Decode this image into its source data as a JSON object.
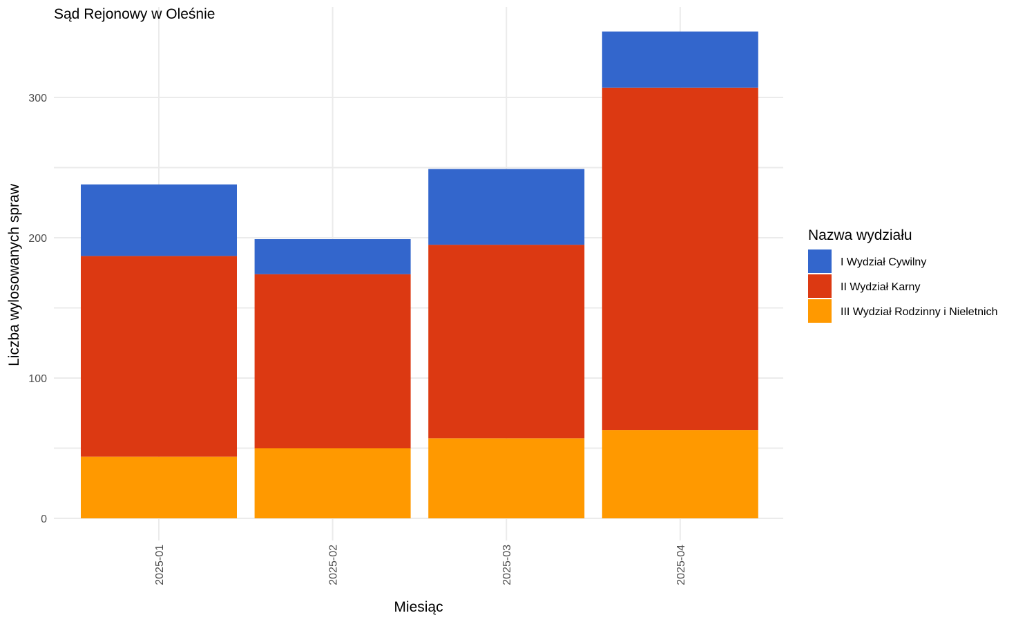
{
  "chart_data": {
    "type": "bar",
    "stacked": true,
    "title": "Sąd Rejonowy w Oleśnie",
    "xlabel": "Miesiąc",
    "ylabel": "Liczba wylosowanych spraw",
    "categories": [
      "2025-01",
      "2025-02",
      "2025-03",
      "2025-04"
    ],
    "ylim": [
      0,
      350
    ],
    "yticks": [
      0,
      100,
      200,
      300
    ],
    "grid": true,
    "legend": {
      "title": "Nazwa wydziału",
      "position": "right"
    },
    "series": [
      {
        "name": "I Wydział Cywilny",
        "color": "#3366cc",
        "values": [
          51,
          25,
          54,
          40
        ]
      },
      {
        "name": "II Wydział Karny",
        "color": "#dc3912",
        "values": [
          143,
          124,
          138,
          244
        ]
      },
      {
        "name": "III Wydział Rodzinny i Nieletnich",
        "color": "#ff9900",
        "values": [
          44,
          50,
          57,
          63
        ]
      }
    ]
  }
}
